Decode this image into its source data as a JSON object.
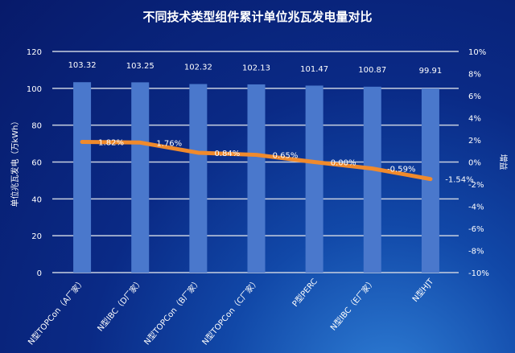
{
  "chart_data": {
    "type": "bar+line",
    "title": "不同技术类型组件累计单位兆瓦发电量对比",
    "ylabel": "单位兆瓦发电（万kWh）",
    "y2label": "增益",
    "categories": [
      "N型TOPCon（A厂家）",
      "N型IBC（D厂家）",
      "N型TOPCon（B厂家）",
      "N型TOPCon（C厂家）",
      "P型PERC",
      "N型IBC（E厂家）",
      "N型HJT"
    ],
    "series": [
      {
        "type": "bar",
        "axis": "left",
        "values": [
          103.32,
          103.25,
          102.32,
          102.13,
          101.47,
          100.87,
          99.91
        ],
        "labels": [
          "103.32",
          "103.25",
          "102.32",
          "102.13",
          "101.47",
          "100.87",
          "99.91"
        ],
        "color": "#4a78cc"
      },
      {
        "type": "line",
        "axis": "right",
        "values": [
          1.82,
          1.76,
          0.84,
          0.65,
          0.0,
          -0.59,
          -1.54
        ],
        "labels": [
          "1.82%",
          "1.76%",
          "0.84%",
          "0.65%",
          "0.00%",
          "-0.59%",
          "-1.54%"
        ],
        "color": "#f08a2c"
      }
    ],
    "ylim": [
      0,
      120
    ],
    "yticks": [
      "0",
      "20",
      "40",
      "60",
      "80",
      "100",
      "120"
    ],
    "y2lim": [
      -10,
      10
    ],
    "y2ticks": [
      "-10%",
      "-8%",
      "-6%",
      "-4%",
      "-2%",
      "0%",
      "2%",
      "4%",
      "6%",
      "8%",
      "10%"
    ],
    "grid": true,
    "legend": "none"
  }
}
